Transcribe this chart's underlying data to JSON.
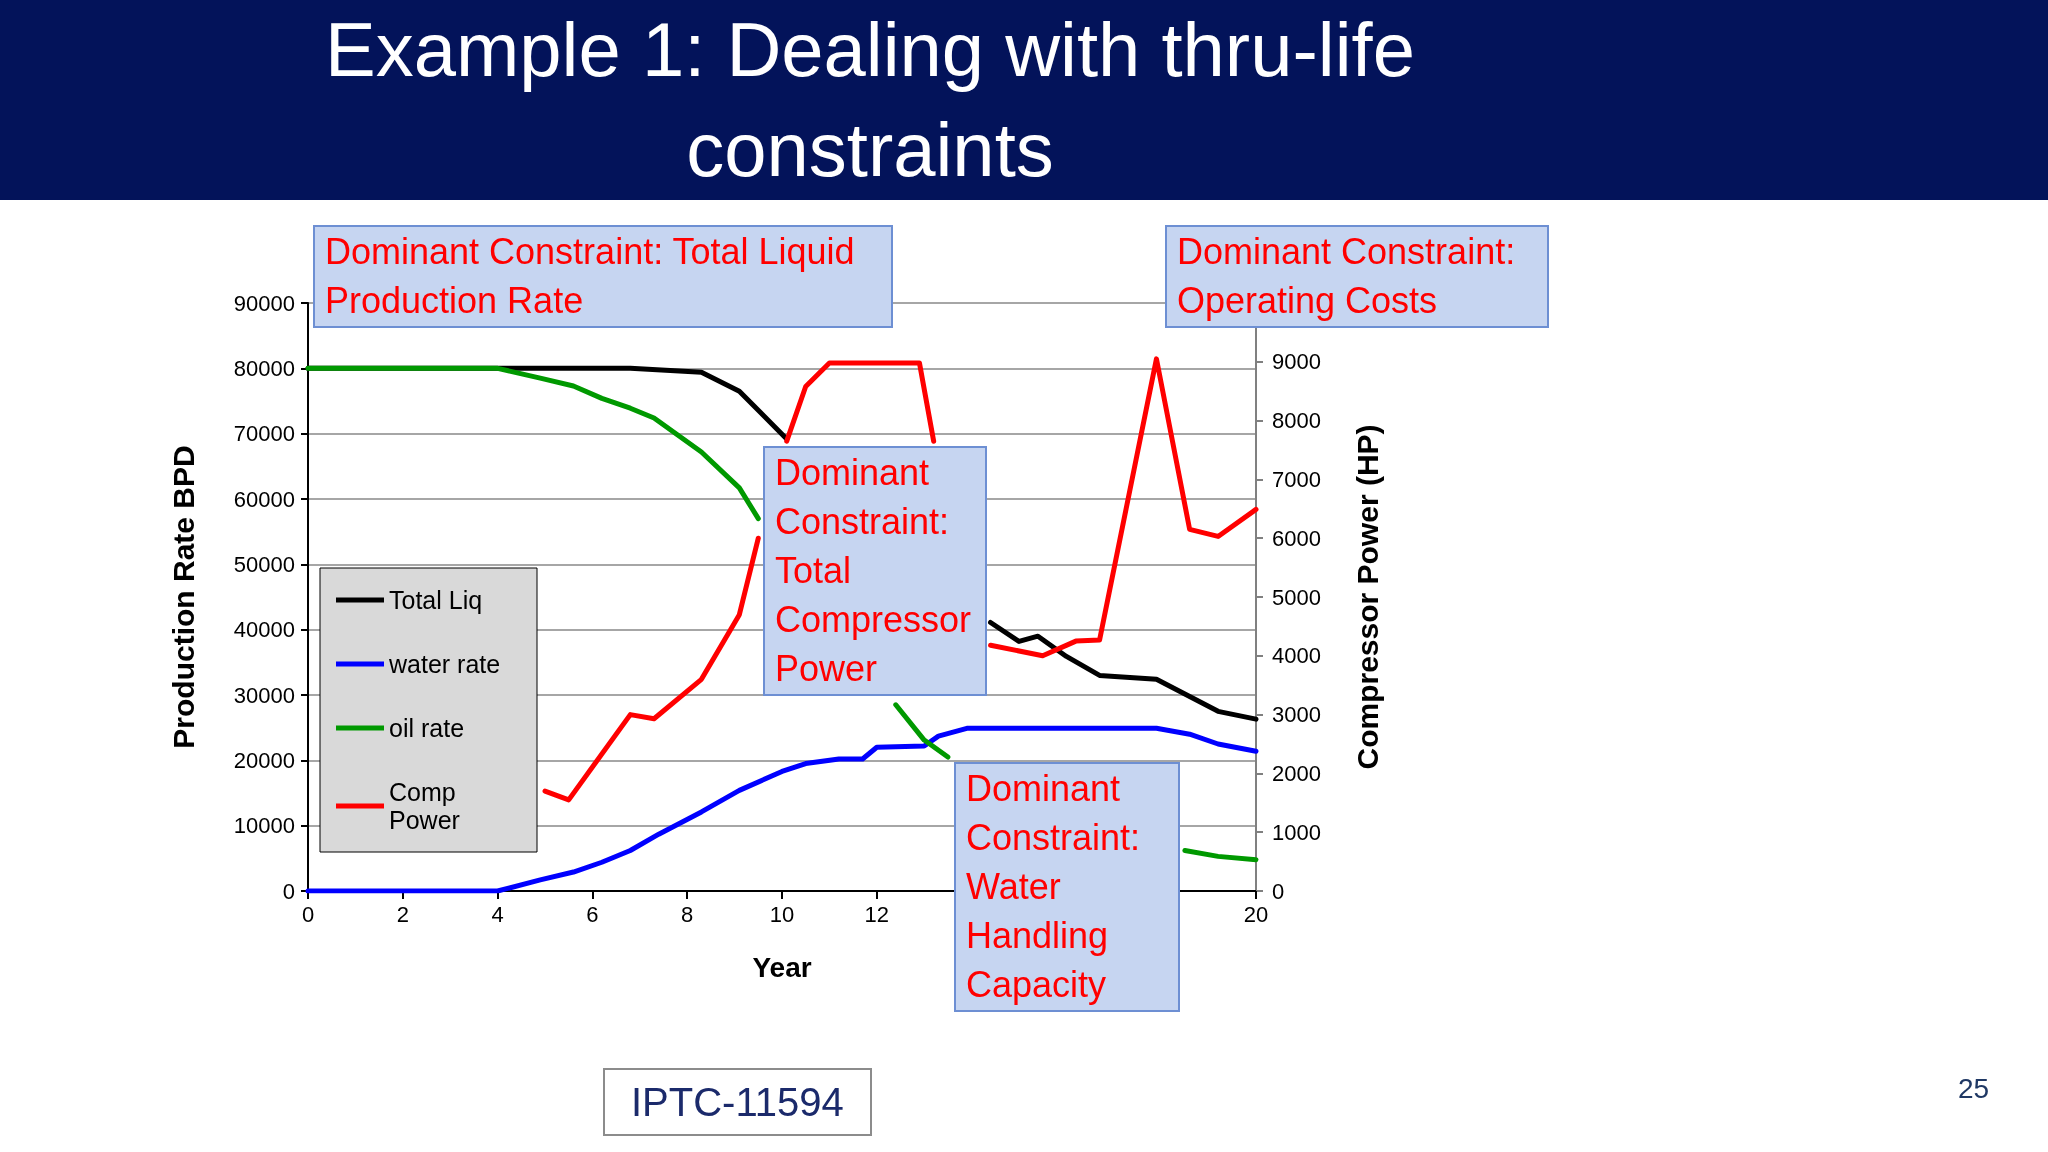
{
  "chart_data": {
    "type": "line",
    "title": "Example 1: Dealing with thru-life constraints",
    "xlabel": "Year",
    "ylabel": "Production Rate BPD",
    "y2label": "Compressor Power (HP)",
    "annotations": [
      "Dominant Constraint: Total Liquid Production Rate",
      "Dominant Constraint: Operating Costs",
      "Dominant Constraint: Total Compressor Power",
      "Dominant Constraint: Water Handling Capacity",
      "IPTC-11594",
      "25"
    ],
    "series": [
      {
        "name": "Total Liq",
        "color": "#000000",
        "x": [
          0,
          6.8,
          8.3,
          9.1,
          10.1,
          12,
          14.4,
          15.0,
          15.4,
          16.0,
          16.7,
          17.9,
          19.2,
          20
        ],
        "values": [
          80000,
          80000,
          79400,
          76500,
          69200,
          null,
          41100,
          38200,
          39000,
          35900,
          33000,
          32400,
          27500,
          26300
        ]
      },
      {
        "name": "water rate",
        "color": "#0000ff",
        "x": [
          0,
          4.0,
          4.9,
          5.6,
          6.2,
          6.8,
          7.4,
          8.3,
          9.1,
          10.0,
          10.5,
          11.2,
          11.7,
          12.0,
          13.0,
          13.3,
          13.9,
          17.9,
          18.6,
          19.2,
          20
        ],
        "values": [
          0,
          0,
          1700,
          2900,
          4400,
          6200,
          8700,
          12100,
          15400,
          18300,
          19500,
          20200,
          20200,
          22000,
          22200,
          23700,
          24900,
          24900,
          24000,
          22500,
          21400
        ]
      },
      {
        "name": "oil rate",
        "color": "#009900",
        "x": [
          0,
          4.0,
          4.9,
          5.6,
          6.2,
          6.8,
          7.3,
          8.3,
          9.1,
          9.5,
          11,
          12.4,
          13.0,
          13.5,
          16,
          18.5,
          19.2,
          20
        ],
        "values": [
          80000,
          80000,
          78500,
          77300,
          75400,
          73900,
          72400,
          67200,
          61700,
          57000,
          null,
          28500,
          23100,
          20500,
          null,
          6200,
          5300,
          4800
        ]
      },
      {
        "name": "Comp Power",
        "color": "#ff0000",
        "axis": "y2",
        "x": [
          5.0,
          5.5,
          6.8,
          7.3,
          8.3,
          9.1,
          9.5,
          9.8,
          10.1,
          10.5,
          11.0,
          12.9,
          13.2,
          13.8,
          14.4,
          15.5,
          16.2,
          16.7,
          17.9,
          18.6,
          19.2,
          20
        ],
        "values": [
          1700,
          1550,
          3000,
          2930,
          3600,
          4700,
          6000,
          null,
          7650,
          8580,
          8980,
          8980,
          7650,
          null,
          4180,
          4000,
          4250,
          4270,
          9050,
          6150,
          6030,
          6490
        ]
      }
    ],
    "xlim": [
      0,
      20
    ],
    "xticks": [
      0,
      2,
      4,
      6,
      8,
      10,
      12,
      20
    ],
    "ylim": [
      0,
      90000
    ],
    "yticks": [
      0,
      10000,
      20000,
      30000,
      40000,
      50000,
      60000,
      70000,
      80000,
      90000
    ],
    "y2lim": [
      0,
      10000
    ],
    "y2ticks": [
      0,
      1000,
      2000,
      3000,
      4000,
      5000,
      6000,
      7000,
      8000,
      9000
    ],
    "grid": "y",
    "legend": "bottom left",
    "marker": "none",
    "line_style": "solid"
  }
}
